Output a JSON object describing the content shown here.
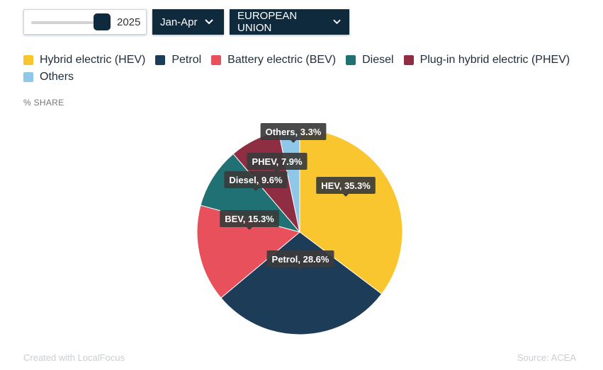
{
  "controls": {
    "year_value": "2025",
    "period_label": "Jan-Apr",
    "region_label": "EUROPEAN UNION"
  },
  "y_label": "% SHARE",
  "footer": {
    "credit": "Created with LocalFocus",
    "source": "Source:  ACEA"
  },
  "legend": [
    {
      "label": "Hybrid electric (HEV)",
      "color": "#f9c62f"
    },
    {
      "label": "Petrol",
      "color": "#1d3c57"
    },
    {
      "label": "Battery electric (BEV)",
      "color": "#e8505b"
    },
    {
      "label": "Diesel",
      "color": "#1f7173"
    },
    {
      "label": "Plug-in hybrid electric (PHEV)",
      "color": "#8f2d43"
    },
    {
      "label": "Others",
      "color": "#8fc7e8"
    }
  ],
  "chart_data": {
    "type": "pie",
    "ylabel": "% SHARE",
    "slices": [
      {
        "name": "Hybrid electric (HEV)",
        "short": "HEV",
        "value": 35.3,
        "label": "HEV, 35.3%",
        "color": "#f9c62f"
      },
      {
        "name": "Petrol",
        "short": "Petrol",
        "value": 28.6,
        "label": "Petrol, 28.6%",
        "color": "#1d3c57"
      },
      {
        "name": "Battery electric (BEV)",
        "short": "BEV",
        "value": 15.3,
        "label": "BEV, 15.3%",
        "color": "#e8505b"
      },
      {
        "name": "Diesel",
        "short": "Diesel",
        "value": 9.6,
        "label": "Diesel, 9.6%",
        "color": "#1f7173"
      },
      {
        "name": "Plug-in hybrid electric (PHEV)",
        "short": "PHEV",
        "value": 7.9,
        "label": "PHEV, 7.9%",
        "color": "#8f2d43"
      },
      {
        "name": "Others",
        "short": "Others",
        "value": 3.3,
        "label": "Others, 3.3%",
        "color": "#8fc7e8"
      }
    ]
  }
}
